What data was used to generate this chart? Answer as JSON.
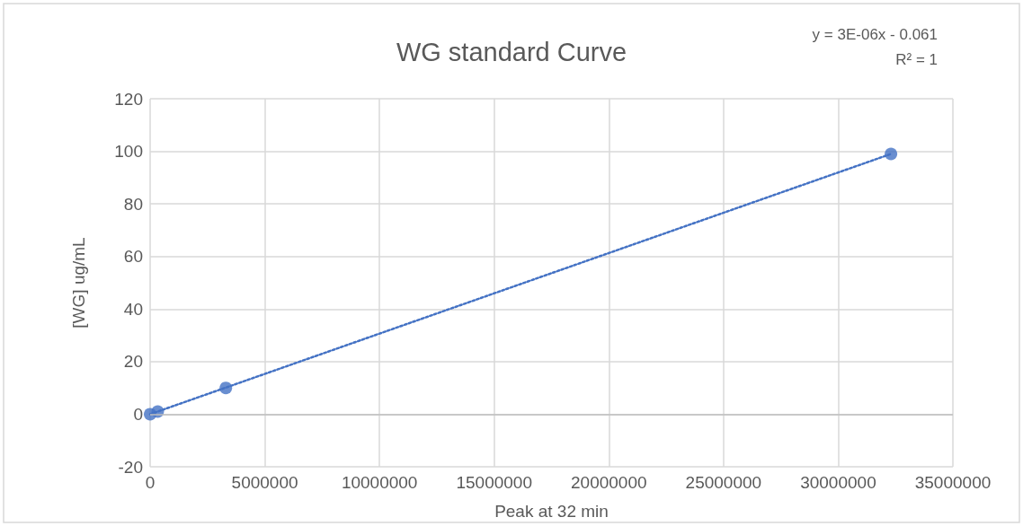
{
  "chart_data": {
    "type": "scatter",
    "title": "WG standard Curve",
    "xlabel": "Peak at 32 min",
    "ylabel": "[WG] ug/mL",
    "annotations": [
      "y = 3E-06x - 0.061",
      "R² = 1"
    ],
    "series": [
      {
        "color": "#4472c4",
        "marker": "circle",
        "x": [
          0,
          330000,
          3300000,
          32300000
        ],
        "values": [
          0,
          1,
          10,
          99
        ]
      },
      {
        "type": "line",
        "color": "#4472c4",
        "marker": "none",
        "line_style": "dotted",
        "x": [
          0,
          32300000
        ],
        "values": [
          0,
          99
        ]
      }
    ],
    "xlim": [
      0,
      35000000
    ],
    "xticks": [
      0,
      5000000,
      10000000,
      15000000,
      20000000,
      25000000,
      30000000,
      35000000
    ],
    "ylim": [
      -20,
      120
    ],
    "yticks": [
      -20,
      0,
      20,
      40,
      60,
      80,
      100,
      120
    ],
    "grid": true
  }
}
